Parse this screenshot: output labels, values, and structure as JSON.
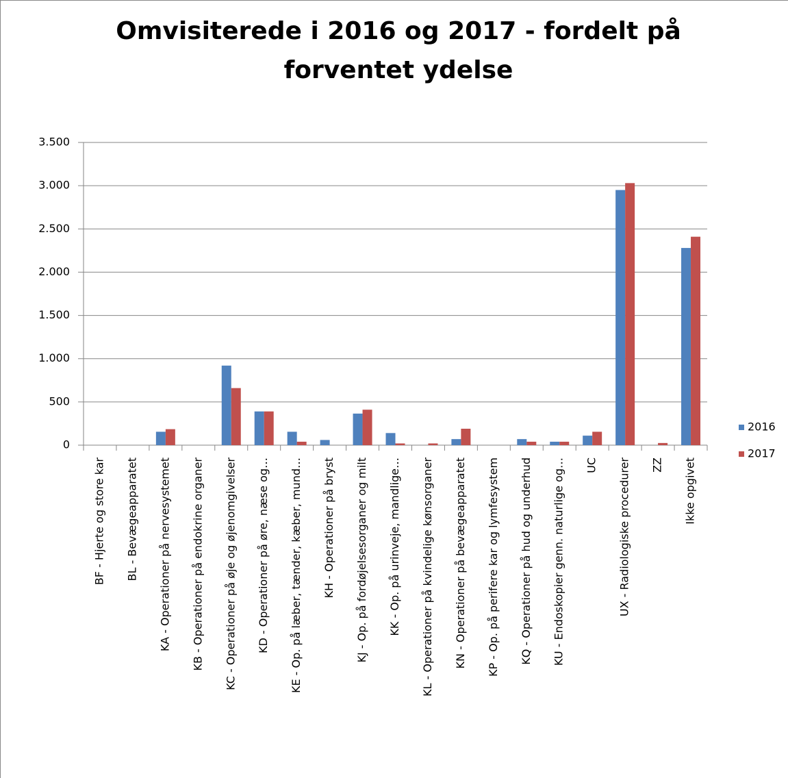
{
  "chart_data": {
    "type": "bar",
    "title": [
      "Omvisiterede i 2016 og 2017 - fordelt på",
      "forventet ydelse"
    ],
    "categories": [
      "BF - Hjerte og  store kar",
      "BL - Bevægeapparatet",
      "KA - Operationer på nervesystemet",
      "KB - Operationer på endokrine organer",
      "KC - Operationer på øje og øjenomgivelser",
      "KD - Operationer på øre, næse og…",
      "KE - Op. på læber, tænder, kæber, mund…",
      "KH - Operationer på bryst",
      "KJ - Op. på fordøjelsesorganer og milt",
      "KK - Op. på urinveje, mandlige…",
      "KL - Operationer på kvindelige kønsorganer",
      "KN - Operationer på bevægeapparatet",
      "KP - Op. på perifere kar og lymfesystem",
      "KQ - Operationer på hud og underhud",
      "KU - Endoskopier genn. naturlige og…",
      "UC",
      "UX - Radiologiske procedurer",
      "ZZ",
      "Ikke opgivet"
    ],
    "series": [
      {
        "name": "2016",
        "color": "#4f81bd",
        "values": [
          0,
          0,
          155,
          0,
          920,
          390,
          155,
          60,
          365,
          140,
          0,
          70,
          0,
          70,
          40,
          110,
          2950,
          0,
          2280
        ]
      },
      {
        "name": "2017",
        "color": "#c0504d",
        "values": [
          0,
          0,
          185,
          0,
          660,
          390,
          40,
          0,
          410,
          20,
          20,
          190,
          0,
          40,
          40,
          155,
          3030,
          25,
          2410
        ]
      }
    ],
    "ylim": [
      0,
      3500
    ],
    "yticks": [
      0,
      {
        "value": 500,
        "label": "500"
      },
      {
        "value": 1000,
        "label": "1.000"
      },
      {
        "value": 1500,
        "label": "1.500"
      },
      {
        "value": 2000,
        "label": "2.000"
      },
      {
        "value": 2500,
        "label": "2.500"
      },
      {
        "value": 3000,
        "label": "3.000"
      },
      {
        "value": 3500,
        "label": "3.500"
      }
    ],
    "grid": true,
    "legend": "right"
  }
}
